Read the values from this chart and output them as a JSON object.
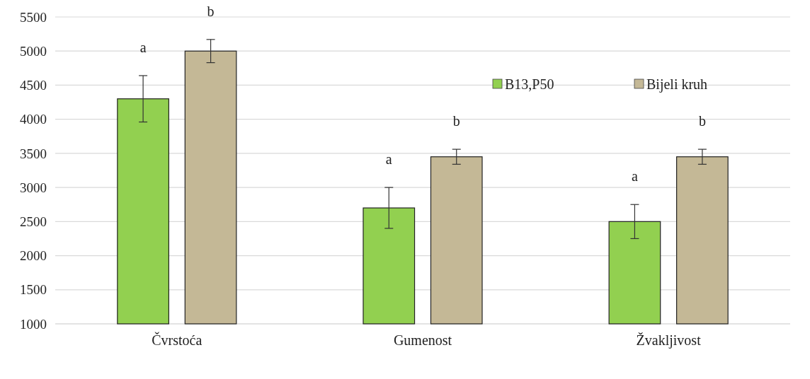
{
  "chart_data": {
    "type": "bar",
    "categories": [
      "Čvrstoća",
      "Gumenost",
      "Žvakljivost"
    ],
    "series": [
      {
        "name": "B13,P50",
        "color": "#92d050",
        "values": [
          4300,
          2700,
          2500
        ],
        "errors": [
          340,
          300,
          250
        ]
      },
      {
        "name": "Bijeli kruh",
        "color": "#c4b896",
        "values": [
          5000,
          3450,
          3450
        ],
        "errors": [
          170,
          110,
          110
        ]
      }
    ],
    "ylim": [
      1000,
      5500
    ],
    "yticks": [
      1000,
      1500,
      2000,
      2500,
      3000,
      3500,
      4000,
      4500,
      5000,
      5500
    ],
    "grid": "y",
    "legend": "top right",
    "annotations": [
      "a",
      "b",
      "a",
      "b",
      "a",
      "b"
    ]
  }
}
